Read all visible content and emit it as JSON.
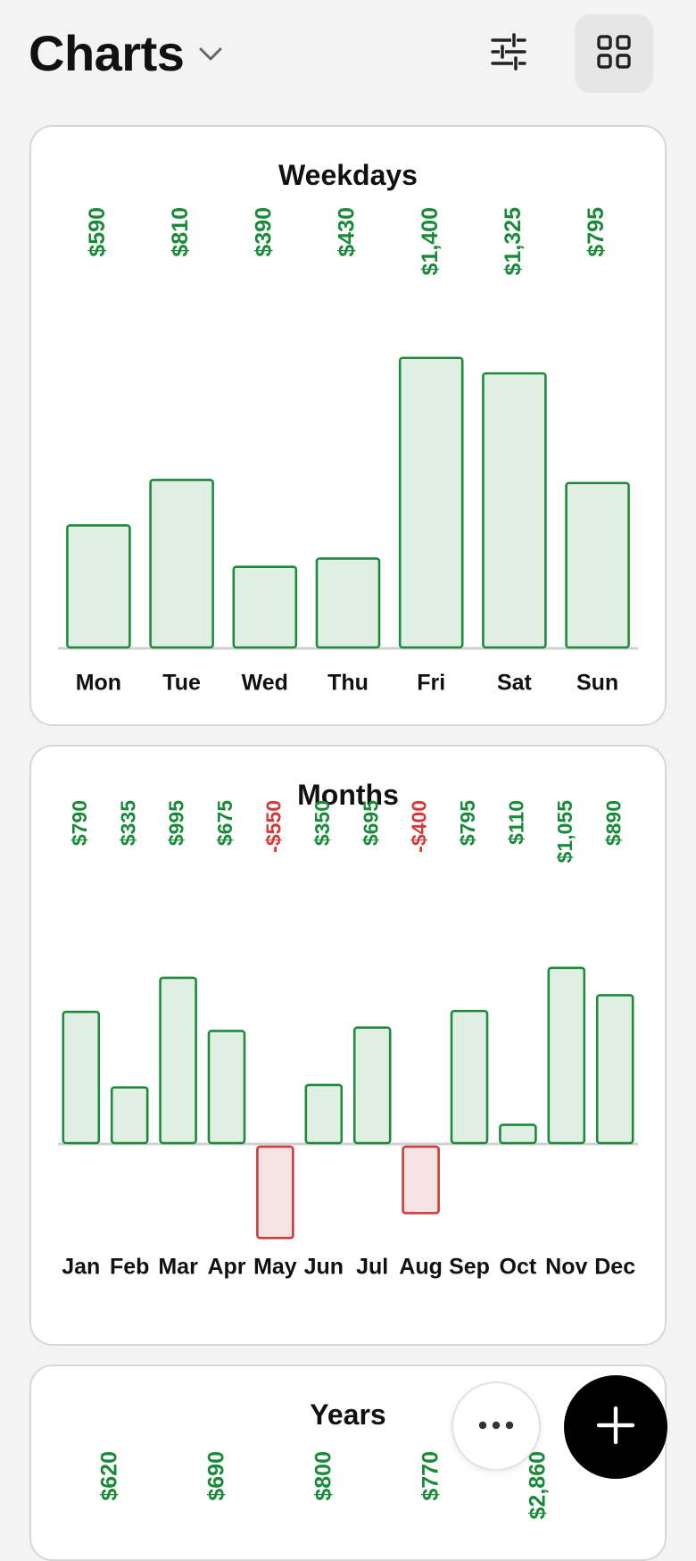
{
  "header": {
    "title": "Charts",
    "icons": {
      "dropdown": "chevron-down-icon",
      "filter": "sliders-icon",
      "layout": "grid-icon"
    }
  },
  "colors": {
    "positive_stroke": "#1f8a3d",
    "positive_fill": "#dfefe2",
    "positive_text": "#1a8a3a",
    "negative_stroke": "#d03a3a",
    "negative_fill": "#f6e3e3",
    "negative_text": "#d33a3a",
    "baseline": "#d0d0d0"
  },
  "cards": [
    {
      "title": "Weekdays"
    },
    {
      "title": "Months"
    },
    {
      "title": "Years"
    }
  ],
  "chart_data": [
    {
      "type": "bar",
      "title": "Weekdays",
      "categories": [
        "Mon",
        "Tue",
        "Wed",
        "Thu",
        "Fri",
        "Sat",
        "Sun"
      ],
      "values": [
        590,
        810,
        390,
        430,
        1400,
        1325,
        795
      ],
      "value_labels": [
        "$590",
        "$810",
        "$390",
        "$430",
        "$1,400",
        "$1,325",
        "$795"
      ]
    },
    {
      "type": "bar",
      "title": "Months",
      "categories": [
        "Jan",
        "Feb",
        "Mar",
        "Apr",
        "May",
        "Jun",
        "Jul",
        "Aug",
        "Sep",
        "Oct",
        "Nov",
        "Dec"
      ],
      "values": [
        790,
        335,
        995,
        675,
        -550,
        350,
        695,
        -400,
        795,
        110,
        1055,
        890
      ],
      "value_labels": [
        "$790",
        "$335",
        "$995",
        "$675",
        "-$550",
        "$350",
        "$695",
        "-$400",
        "$795",
        "$110",
        "$1,055",
        "$890"
      ]
    },
    {
      "type": "bar",
      "title": "Years",
      "value_labels": [
        "$620",
        "$690",
        "$800",
        "$770",
        "$2,860"
      ]
    }
  ],
  "fabs": {
    "more": "more-horizontal-icon",
    "add": "plus-icon"
  }
}
